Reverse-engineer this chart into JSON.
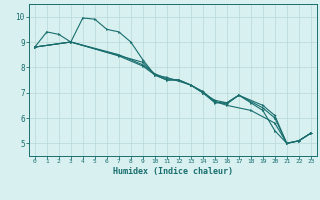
{
  "title": "",
  "xlabel": "Humidex (Indice chaleur)",
  "ylabel": "",
  "background_color": "#d8f0f0",
  "grid_color": "#b8d8d8",
  "line_color": "#1a6e6e",
  "xlim": [
    -0.5,
    23.5
  ],
  "ylim": [
    4.5,
    10.5
  ],
  "xticks": [
    0,
    1,
    2,
    3,
    4,
    5,
    6,
    7,
    8,
    9,
    10,
    11,
    12,
    13,
    14,
    15,
    16,
    17,
    18,
    19,
    20,
    21,
    22,
    23
  ],
  "yticks": [
    5,
    6,
    7,
    8,
    9,
    10
  ],
  "lines": [
    {
      "x": [
        0,
        1,
        2,
        3,
        4,
        5,
        6,
        7,
        8,
        9,
        10,
        11,
        12,
        13,
        14,
        15,
        16,
        17,
        18,
        19,
        20,
        21,
        22,
        23
      ],
      "y": [
        8.8,
        9.4,
        9.3,
        9.0,
        9.95,
        9.9,
        9.5,
        9.4,
        9.0,
        8.3,
        7.7,
        7.5,
        7.5,
        7.3,
        7.0,
        6.6,
        6.6,
        6.9,
        6.6,
        6.3,
        5.5,
        5.0,
        5.1,
        5.4
      ]
    },
    {
      "x": [
        0,
        3,
        9,
        10,
        11,
        12,
        13,
        14,
        15,
        16,
        17,
        19,
        20,
        21,
        22,
        23
      ],
      "y": [
        8.8,
        9.0,
        8.2,
        7.7,
        7.5,
        7.5,
        7.3,
        7.0,
        6.7,
        6.6,
        6.9,
        6.5,
        6.1,
        5.0,
        5.1,
        5.4
      ]
    },
    {
      "x": [
        0,
        3,
        7,
        9,
        10,
        11,
        12,
        13,
        14,
        15,
        16,
        17,
        19,
        20,
        21,
        22,
        23
      ],
      "y": [
        8.8,
        9.0,
        8.5,
        8.1,
        7.75,
        7.55,
        7.5,
        7.3,
        7.0,
        6.65,
        6.55,
        6.9,
        6.4,
        6.0,
        5.0,
        5.1,
        5.4
      ]
    },
    {
      "x": [
        0,
        3,
        7,
        9,
        10,
        11,
        13,
        14,
        15,
        16,
        18,
        20,
        21,
        22,
        23
      ],
      "y": [
        8.8,
        9.0,
        8.45,
        8.05,
        7.7,
        7.6,
        7.3,
        7.05,
        6.65,
        6.5,
        6.3,
        5.8,
        5.0,
        5.1,
        5.4
      ]
    }
  ]
}
